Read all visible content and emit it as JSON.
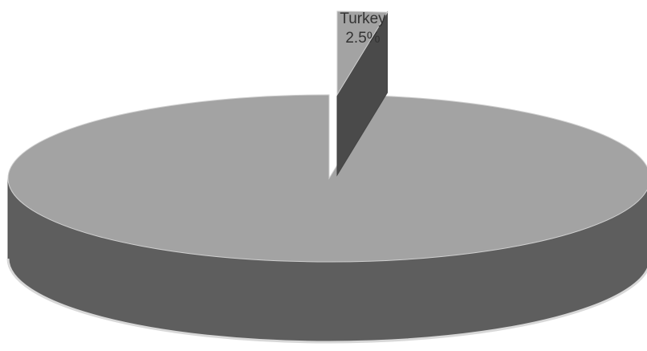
{
  "chart_data": {
    "type": "pie",
    "style": "3d-exploded",
    "title": "",
    "slices": [
      {
        "label": "Turkey",
        "value": 2.5,
        "value_label": "2.5%",
        "exploded": true,
        "color": "#a3a3a3"
      },
      {
        "label": "",
        "value": 97.5,
        "value_label": "",
        "exploded": false,
        "color": "#a3a3a3"
      }
    ],
    "colors": {
      "top": "#a3a3a3",
      "side": "#5e5e5e",
      "cut": "#4a4a4a",
      "highlight": "#bdbdbd",
      "text": "#333333"
    }
  }
}
